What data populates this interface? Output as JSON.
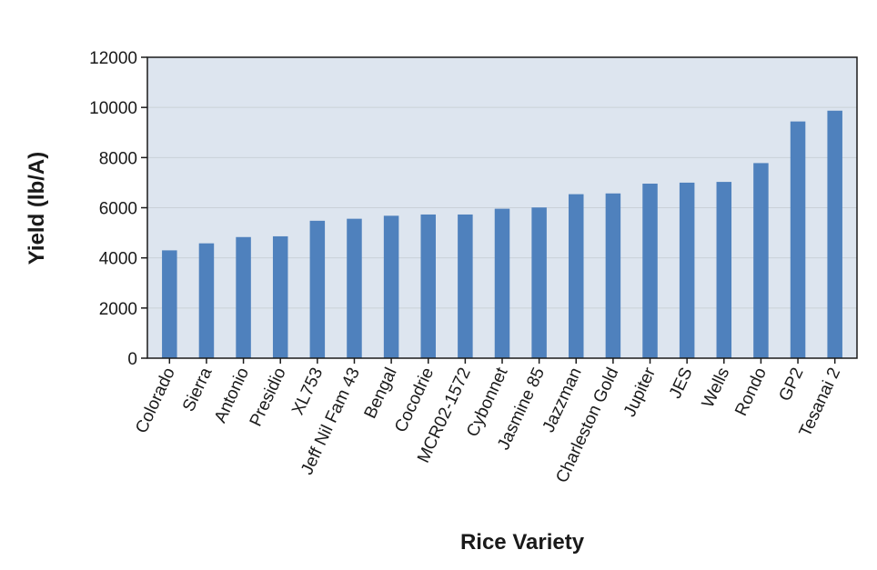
{
  "chart_data": {
    "type": "bar",
    "title": "",
    "xlabel": "Rice Variety",
    "ylabel": "Yield (lb/A)",
    "ylim": [
      0,
      12000
    ],
    "yticks": [
      0,
      2000,
      4000,
      6000,
      8000,
      10000,
      12000
    ],
    "grid": true,
    "legend": "none",
    "categories": [
      "Colorado",
      "Sierra",
      "Antonio",
      "Presidio",
      "XL753",
      "Jeff Nil Fam 43",
      "Bengal",
      "Cocodrie",
      "MCR02-1572",
      "Cybonnet",
      "Jasmine 85",
      "Jazzman",
      "Charleston Gold",
      "Jupiter",
      "JES",
      "Wells",
      "Rondo",
      "GP2",
      "Tesanai 2"
    ],
    "values": [
      4300,
      4580,
      4830,
      4860,
      5480,
      5560,
      5680,
      5730,
      5730,
      5960,
      6010,
      6540,
      6570,
      6960,
      7000,
      7030,
      7780,
      9440,
      9870
    ],
    "colors": {
      "bar": "#4f81bd",
      "plot_bg": "#dde5ef",
      "grid": "#c9d0d8",
      "frame": "#1a1a1a"
    }
  }
}
